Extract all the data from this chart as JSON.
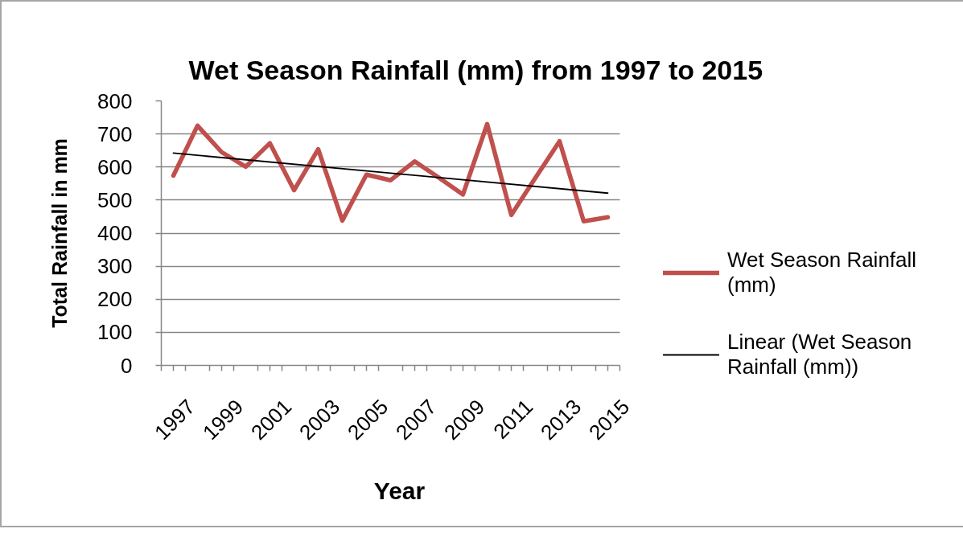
{
  "chart_data": {
    "type": "line",
    "title": "Wet Season Rainfall (mm) from 1997 to 2015",
    "xlabel": "Year",
    "ylabel": "Total Rainfall in mm",
    "x": [
      1997,
      1998,
      1999,
      2000,
      2001,
      2002,
      2003,
      2004,
      2005,
      2006,
      2007,
      2008,
      2009,
      2010,
      2011,
      2012,
      2013,
      2014,
      2015
    ],
    "xlim": [
      1996.5,
      2015.5
    ],
    "xticks": [
      {
        "value": 1996.5,
        "label": null
      },
      1997,
      {
        "value": 1997.5,
        "label": null
      },
      {
        "value": 1998.5,
        "label": null
      },
      1999,
      {
        "value": 1999.5,
        "label": null
      },
      {
        "value": 2000.5,
        "label": null
      },
      2001,
      {
        "value": 2001.5,
        "label": null
      },
      {
        "value": 2002.5,
        "label": null
      },
      2003,
      {
        "value": 2003.5,
        "label": null
      },
      {
        "value": 2004.5,
        "label": null
      },
      2005,
      {
        "value": 2005.5,
        "label": null
      },
      {
        "value": 2006.5,
        "label": null
      },
      2007,
      {
        "value": 2007.5,
        "label": null
      },
      {
        "value": 2008.5,
        "label": null
      },
      2009,
      {
        "value": 2009.5,
        "label": null
      },
      {
        "value": 2010.5,
        "label": null
      },
      2011,
      {
        "value": 2011.5,
        "label": null
      },
      {
        "value": 2012.5,
        "label": null
      },
      2013,
      {
        "value": 2013.5,
        "label": null
      },
      {
        "value": 2014.5,
        "label": null
      },
      2015,
      {
        "value": 2015.5,
        "label": null
      }
    ],
    "ylim": [
      0,
      800
    ],
    "yticks": [
      0,
      100,
      200,
      300,
      400,
      500,
      600,
      700,
      800
    ],
    "grid": "y",
    "legend": "right",
    "series": [
      {
        "name": "Wet Season Rainfall (mm)",
        "color": "#c0504d",
        "values": [
          574,
          725,
          645,
          601,
          672,
          530,
          654,
          438,
          577,
          560,
          617,
          568,
          517,
          730,
          455,
          567,
          678,
          436,
          448
        ]
      },
      {
        "name": "Linear (Wet Season Rainfall (mm))",
        "type": "line",
        "color": "#000000",
        "x": [
          1997,
          2015
        ],
        "values": [
          642,
          521
        ]
      }
    ]
  }
}
